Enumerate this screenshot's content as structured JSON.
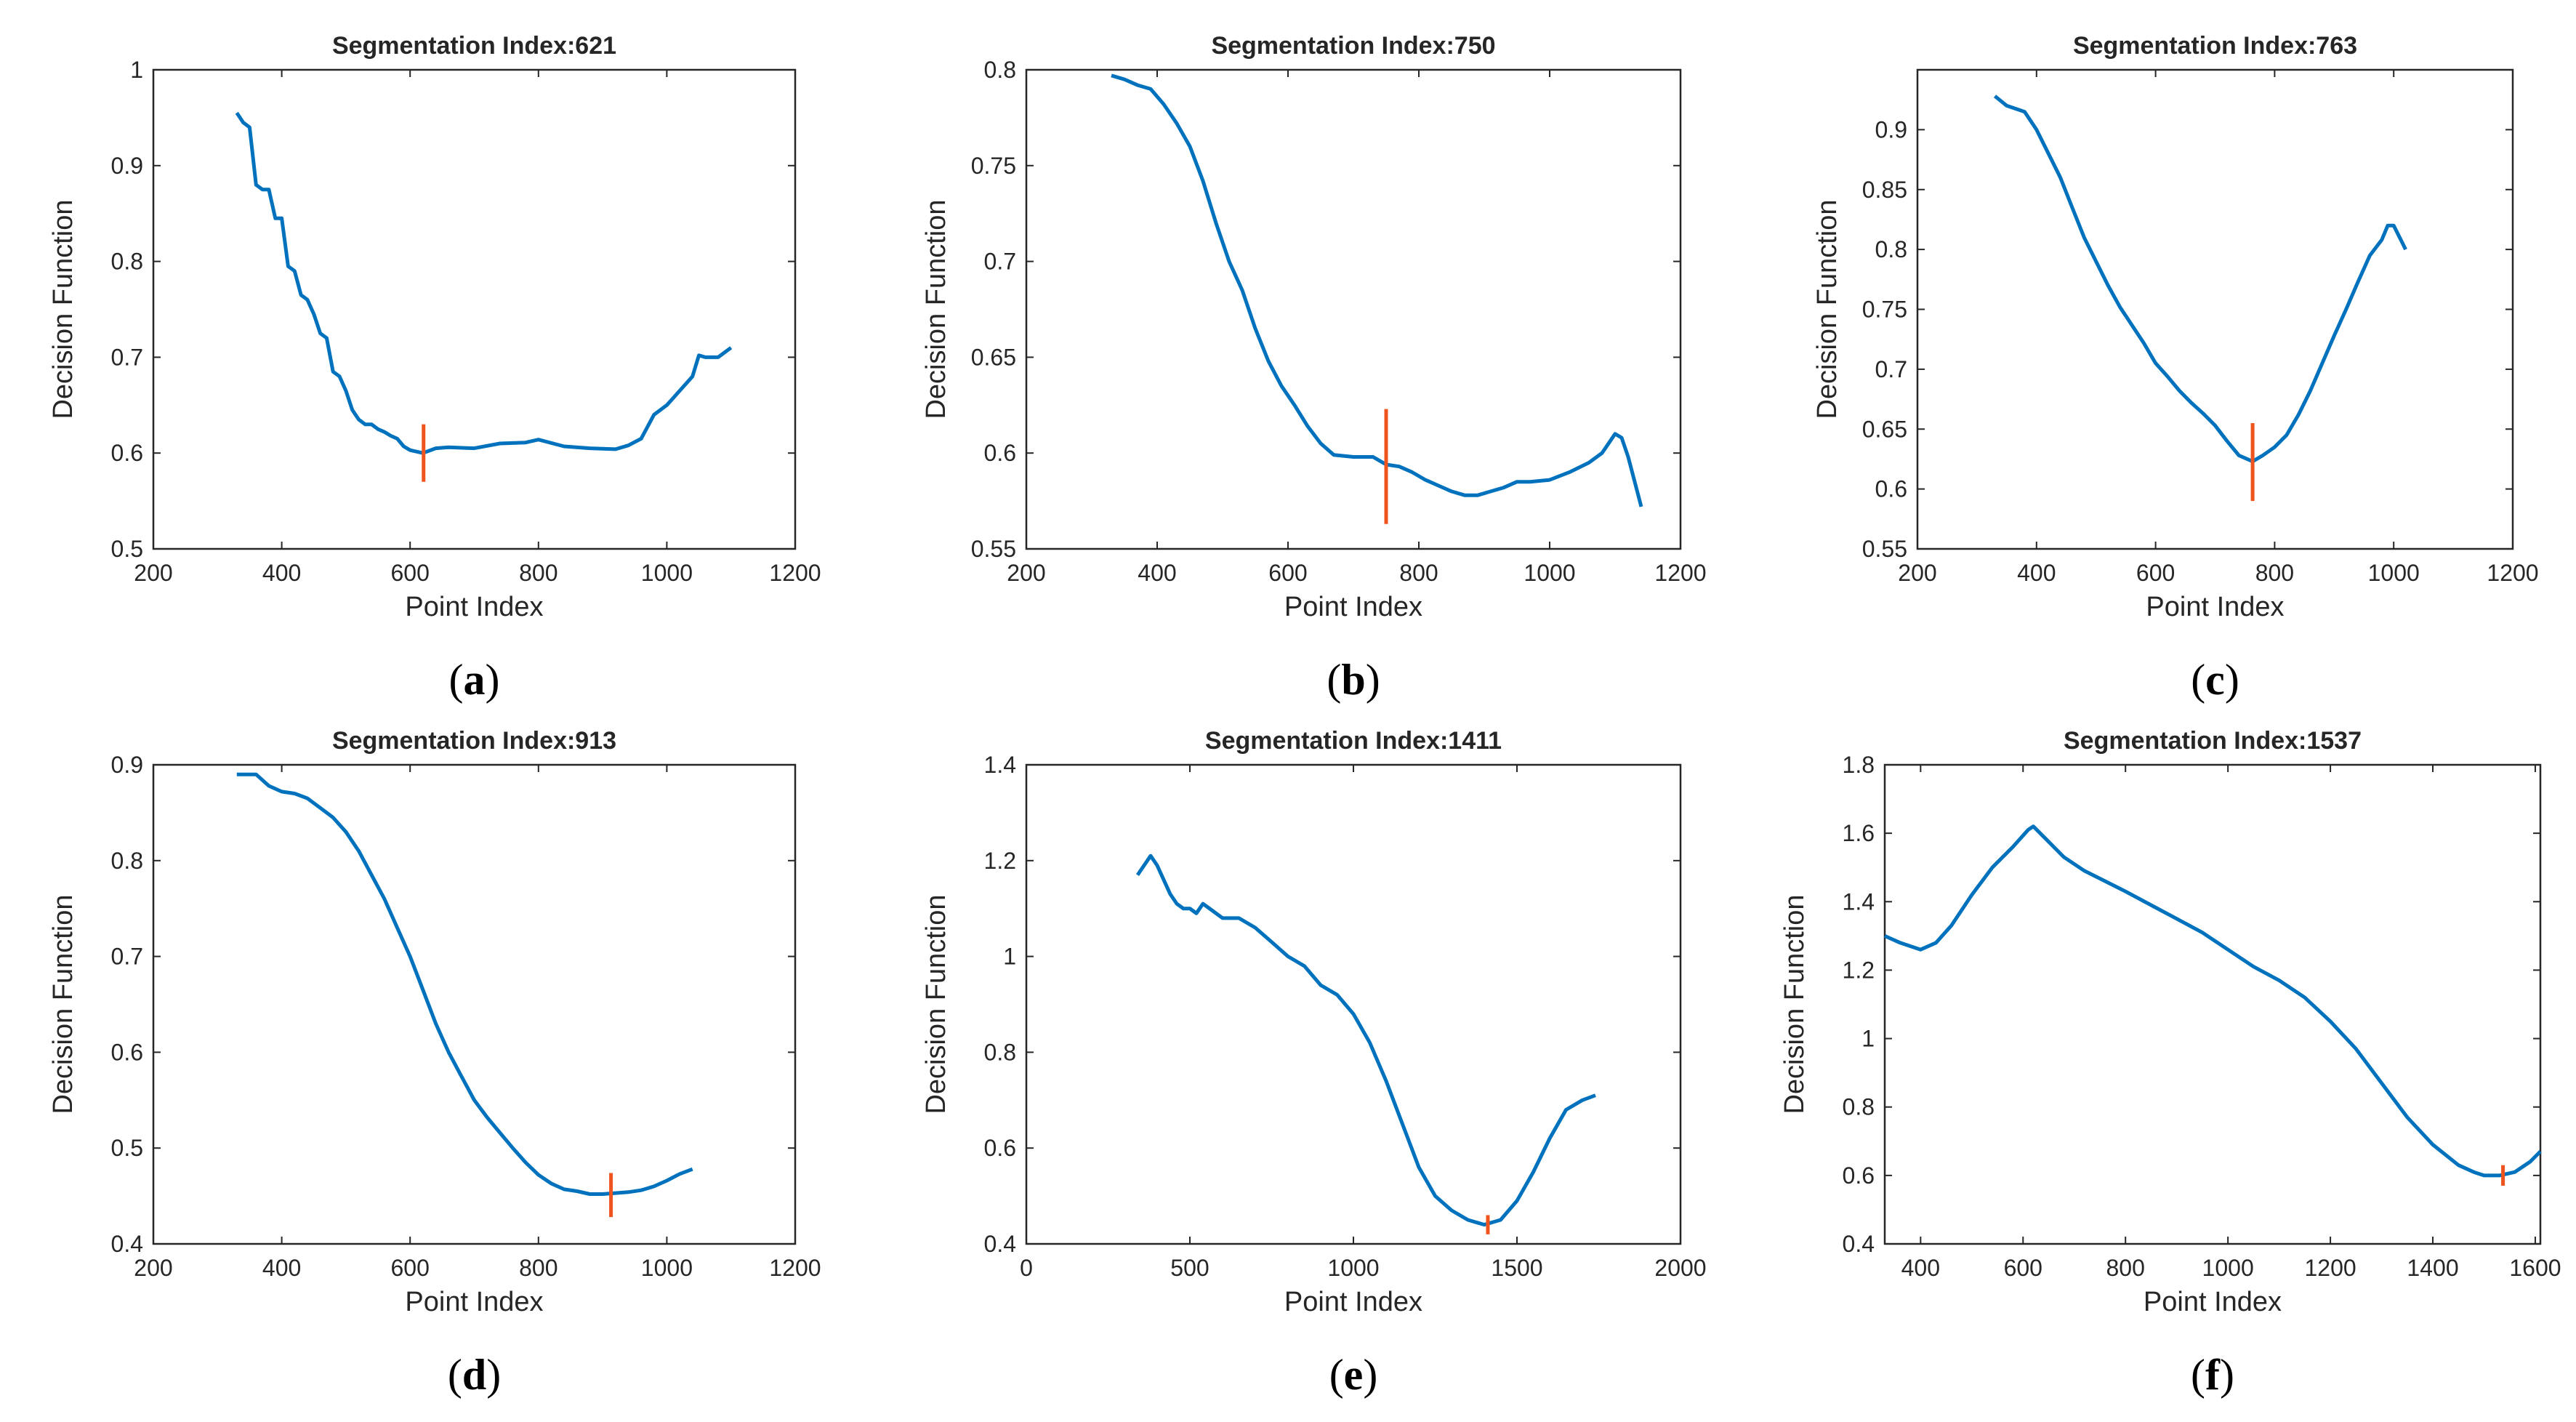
{
  "colors": {
    "line": "#0072BD",
    "marker": "#F0541E",
    "axis": "#262626"
  },
  "chart_data": [
    {
      "type": "line",
      "panel_label": "a",
      "title": "Segmentation Index:621",
      "xlabel": "Point Index",
      "ylabel": "Decision Function",
      "xlim": [
        200,
        1200
      ],
      "ylim": [
        0.5,
        1
      ],
      "xticks": [
        200,
        400,
        600,
        800,
        1000,
        1200
      ],
      "xtick_labels": [
        "200",
        "400",
        "600",
        "800",
        "1000",
        "1200"
      ],
      "yticks": [
        0.5,
        0.6,
        0.7,
        0.8,
        0.9,
        1
      ],
      "ytick_labels": [
        "0.5",
        "0.6",
        "0.7",
        "0.8",
        "0.9",
        "1"
      ],
      "segmentation_index": 621,
      "marker_range": [
        0.57,
        0.63
      ],
      "x": [
        330,
        340,
        350,
        360,
        370,
        380,
        390,
        400,
        410,
        420,
        430,
        440,
        450,
        460,
        470,
        480,
        490,
        500,
        510,
        520,
        530,
        540,
        550,
        560,
        570,
        580,
        590,
        600,
        620,
        640,
        660,
        700,
        740,
        780,
        800,
        840,
        880,
        920,
        940,
        960,
        980,
        1000,
        1020,
        1040,
        1050,
        1060,
        1080,
        1100
      ],
      "y": [
        0.955,
        0.945,
        0.94,
        0.88,
        0.875,
        0.875,
        0.845,
        0.845,
        0.795,
        0.79,
        0.765,
        0.76,
        0.745,
        0.725,
        0.72,
        0.685,
        0.68,
        0.665,
        0.645,
        0.635,
        0.63,
        0.63,
        0.625,
        0.622,
        0.618,
        0.615,
        0.607,
        0.603,
        0.6,
        0.605,
        0.606,
        0.605,
        0.61,
        0.611,
        0.614,
        0.607,
        0.605,
        0.604,
        0.608,
        0.615,
        0.64,
        0.65,
        0.665,
        0.68,
        0.702,
        0.7,
        0.7,
        0.71
      ]
    },
    {
      "type": "line",
      "panel_label": "b",
      "title": "Segmentation Index:750",
      "xlabel": "Point Index",
      "ylabel": "Decision Function",
      "xlim": [
        200,
        1200
      ],
      "ylim": [
        0.55,
        0.8
      ],
      "xticks": [
        200,
        400,
        600,
        800,
        1000,
        1200
      ],
      "xtick_labels": [
        "200",
        "400",
        "600",
        "800",
        "1000",
        "1200"
      ],
      "yticks": [
        0.55,
        0.6,
        0.65,
        0.7,
        0.75,
        0.8
      ],
      "ytick_labels": [
        "0.55",
        "0.6",
        "0.65",
        "0.7",
        "0.75",
        "0.8"
      ],
      "segmentation_index": 750,
      "marker_range": [
        0.563,
        0.623
      ],
      "x": [
        330,
        350,
        370,
        390,
        410,
        430,
        450,
        470,
        490,
        510,
        530,
        550,
        570,
        590,
        610,
        630,
        650,
        670,
        700,
        730,
        750,
        770,
        790,
        810,
        830,
        850,
        870,
        890,
        910,
        930,
        950,
        970,
        1000,
        1030,
        1060,
        1080,
        1100,
        1110,
        1120,
        1130,
        1140
      ],
      "y": [
        0.797,
        0.795,
        0.792,
        0.79,
        0.782,
        0.772,
        0.76,
        0.742,
        0.72,
        0.7,
        0.685,
        0.665,
        0.648,
        0.635,
        0.625,
        0.614,
        0.605,
        0.599,
        0.598,
        0.598,
        0.594,
        0.593,
        0.59,
        0.586,
        0.583,
        0.58,
        0.578,
        0.578,
        0.58,
        0.582,
        0.585,
        0.585,
        0.586,
        0.59,
        0.595,
        0.6,
        0.61,
        0.608,
        0.598,
        0.585,
        0.572
      ]
    },
    {
      "type": "line",
      "panel_label": "c",
      "title": "Segmentation Index:763",
      "xlabel": "Point Index",
      "ylabel": "Decision Function",
      "xlim": [
        200,
        1200
      ],
      "ylim": [
        0.55,
        0.95
      ],
      "xticks": [
        200,
        400,
        600,
        800,
        1000,
        1200
      ],
      "xtick_labels": [
        "200",
        "400",
        "600",
        "800",
        "1000",
        "1200"
      ],
      "yticks": [
        0.55,
        0.6,
        0.65,
        0.7,
        0.75,
        0.8,
        0.85,
        0.9
      ],
      "ytick_labels": [
        "0.55",
        "0.6",
        "0.65",
        "0.7",
        "0.75",
        "0.8",
        "0.85",
        "0.9"
      ],
      "segmentation_index": 763,
      "marker_range": [
        0.59,
        0.655
      ],
      "x": [
        330,
        350,
        380,
        400,
        420,
        440,
        460,
        480,
        500,
        520,
        540,
        560,
        580,
        600,
        620,
        640,
        660,
        680,
        700,
        720,
        740,
        763,
        780,
        800,
        820,
        840,
        860,
        880,
        900,
        920,
        940,
        960,
        980,
        990,
        1000,
        1010,
        1020
      ],
      "y": [
        0.928,
        0.92,
        0.915,
        0.9,
        0.88,
        0.86,
        0.835,
        0.81,
        0.79,
        0.77,
        0.752,
        0.737,
        0.722,
        0.705,
        0.694,
        0.682,
        0.672,
        0.663,
        0.653,
        0.64,
        0.628,
        0.623,
        0.628,
        0.635,
        0.645,
        0.662,
        0.682,
        0.705,
        0.728,
        0.75,
        0.773,
        0.795,
        0.808,
        0.82,
        0.82,
        0.81,
        0.8
      ]
    },
    {
      "type": "line",
      "panel_label": "d",
      "title": "Segmentation Index:913",
      "xlabel": "Point Index",
      "ylabel": "Decision Function",
      "xlim": [
        200,
        1200
      ],
      "ylim": [
        0.4,
        0.9
      ],
      "xticks": [
        200,
        400,
        600,
        800,
        1000,
        1200
      ],
      "xtick_labels": [
        "200",
        "400",
        "600",
        "800",
        "1000",
        "1200"
      ],
      "yticks": [
        0.4,
        0.5,
        0.6,
        0.7,
        0.8,
        0.9
      ],
      "ytick_labels": [
        "0.4",
        "0.5",
        "0.6",
        "0.7",
        "0.8",
        "0.9"
      ],
      "segmentation_index": 913,
      "marker_range": [
        0.428,
        0.474
      ],
      "x": [
        330,
        360,
        380,
        400,
        420,
        440,
        460,
        480,
        500,
        520,
        540,
        560,
        580,
        600,
        620,
        640,
        660,
        680,
        700,
        720,
        740,
        760,
        780,
        800,
        820,
        840,
        860,
        880,
        900,
        920,
        940,
        960,
        980,
        1000,
        1020,
        1040
      ],
      "y": [
        0.89,
        0.89,
        0.878,
        0.872,
        0.87,
        0.865,
        0.855,
        0.845,
        0.83,
        0.81,
        0.785,
        0.76,
        0.73,
        0.7,
        0.665,
        0.63,
        0.6,
        0.575,
        0.55,
        0.532,
        0.516,
        0.5,
        0.485,
        0.472,
        0.463,
        0.457,
        0.455,
        0.452,
        0.452,
        0.453,
        0.454,
        0.456,
        0.46,
        0.466,
        0.473,
        0.478
      ]
    },
    {
      "type": "line",
      "panel_label": "e",
      "title": "Segmentation Index:1411",
      "xlabel": "Point Index",
      "ylabel": "Decision Function",
      "xlim": [
        0,
        2000
      ],
      "ylim": [
        0.4,
        1.4
      ],
      "xticks": [
        0,
        500,
        1000,
        1500,
        2000
      ],
      "xtick_labels": [
        "0",
        "500",
        "1000",
        "1500",
        "2000"
      ],
      "yticks": [
        0.4,
        0.6,
        0.8,
        1,
        1.2,
        1.4
      ],
      "ytick_labels": [
        "0.4",
        "0.6",
        "0.8",
        "1",
        "1.2",
        "1.4"
      ],
      "segmentation_index": 1411,
      "marker_range": [
        0.42,
        0.46
      ],
      "x": [
        340,
        360,
        380,
        400,
        420,
        440,
        460,
        480,
        500,
        520,
        540,
        560,
        600,
        650,
        700,
        750,
        800,
        850,
        900,
        950,
        1000,
        1050,
        1100,
        1150,
        1200,
        1250,
        1300,
        1350,
        1400,
        1450,
        1500,
        1550,
        1600,
        1650,
        1700,
        1740
      ],
      "y": [
        1.17,
        1.19,
        1.21,
        1.19,
        1.16,
        1.13,
        1.11,
        1.1,
        1.1,
        1.09,
        1.11,
        1.1,
        1.08,
        1.08,
        1.06,
        1.03,
        1.0,
        0.98,
        0.94,
        0.92,
        0.88,
        0.82,
        0.74,
        0.65,
        0.56,
        0.5,
        0.47,
        0.45,
        0.44,
        0.45,
        0.49,
        0.55,
        0.62,
        0.68,
        0.7,
        0.71
      ]
    },
    {
      "type": "line",
      "panel_label": "f",
      "title": "Segmentation Index:1537",
      "xlabel": "Point Index",
      "ylabel": "Decision Function",
      "xlim": [
        330,
        1610
      ],
      "ylim": [
        0.4,
        1.8
      ],
      "xticks": [
        400,
        600,
        800,
        1000,
        1200,
        1400,
        1600
      ],
      "xtick_labels": [
        "400",
        "600",
        "800",
        "1000",
        "1200",
        "1400",
        "1600"
      ],
      "yticks": [
        0.4,
        0.6,
        0.8,
        1,
        1.2,
        1.4,
        1.6,
        1.8
      ],
      "ytick_labels": [
        "0.4",
        "0.6",
        "0.8",
        "1",
        "1.2",
        "1.4",
        "1.6",
        "1.8"
      ],
      "segmentation_index": 1537,
      "marker_range": [
        0.57,
        0.63
      ],
      "x": [
        330,
        360,
        400,
        430,
        460,
        500,
        540,
        580,
        610,
        620,
        640,
        680,
        720,
        760,
        800,
        850,
        900,
        950,
        1000,
        1050,
        1100,
        1150,
        1200,
        1250,
        1300,
        1350,
        1400,
        1450,
        1480,
        1500,
        1530,
        1560,
        1590,
        1610
      ],
      "y": [
        1.3,
        1.28,
        1.26,
        1.28,
        1.33,
        1.42,
        1.5,
        1.56,
        1.61,
        1.62,
        1.59,
        1.53,
        1.49,
        1.46,
        1.43,
        1.39,
        1.35,
        1.31,
        1.26,
        1.21,
        1.17,
        1.12,
        1.05,
        0.97,
        0.87,
        0.77,
        0.69,
        0.63,
        0.61,
        0.6,
        0.6,
        0.61,
        0.64,
        0.67
      ]
    }
  ]
}
